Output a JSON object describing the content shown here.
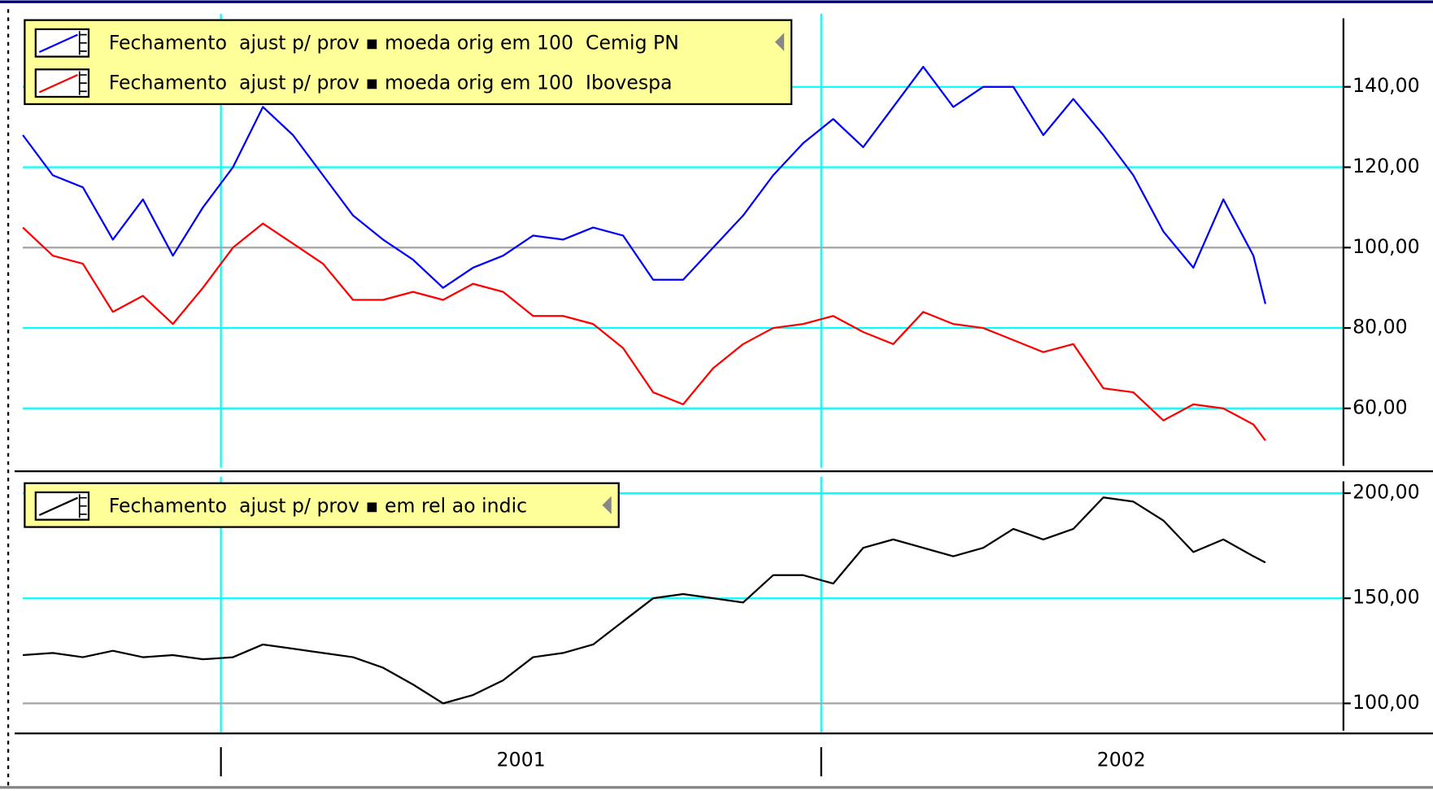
{
  "chart_data": [
    {
      "type": "line",
      "x": [
        2000.67,
        2000.72,
        2000.77,
        2000.82,
        2000.87,
        2000.92,
        2000.97,
        2001.02,
        2001.07,
        2001.12,
        2001.17,
        2001.22,
        2001.27,
        2001.32,
        2001.37,
        2001.42,
        2001.47,
        2001.52,
        2001.57,
        2001.62,
        2001.67,
        2001.72,
        2001.77,
        2001.82,
        2001.87,
        2001.92,
        2001.97,
        2002.02,
        2002.07,
        2002.12,
        2002.17,
        2002.22,
        2002.27,
        2002.32,
        2002.37,
        2002.42,
        2002.47,
        2002.52,
        2002.57,
        2002.62,
        2002.67,
        2002.72,
        2002.74
      ],
      "series": [
        {
          "name": "Fechamento  ajust p/ prov ▪ moeda orig em 100  Cemig PN",
          "color": "#0000ff",
          "values": [
            128,
            118,
            115,
            102,
            112,
            98,
            110,
            120,
            135,
            128,
            118,
            108,
            102,
            97,
            90,
            95,
            98,
            103,
            102,
            105,
            103,
            92,
            92,
            100,
            108,
            118,
            126,
            132,
            125,
            135,
            145,
            135,
            140,
            140,
            128,
            137,
            128,
            118,
            104,
            95,
            112,
            98,
            86
          ]
        },
        {
          "name": "Fechamento  ajust p/ prov ▪ moeda orig em 100  Ibovespa",
          "color": "#ff0000",
          "values": [
            105,
            98,
            96,
            84,
            88,
            81,
            90,
            100,
            106,
            101,
            96,
            87,
            87,
            89,
            87,
            91,
            89,
            83,
            83,
            81,
            75,
            64,
            61,
            70,
            76,
            80,
            81,
            83,
            79,
            76,
            84,
            81,
            80,
            77,
            74,
            76,
            65,
            64,
            57,
            61,
            60,
            56,
            52
          ]
        }
      ],
      "xlim": [
        2000.67,
        2002.87
      ],
      "xticks": [
        2001,
        2002
      ],
      "ylim": [
        45.7,
        158.2
      ],
      "yticks": [
        {
          "value": 60,
          "label": "60,00"
        },
        {
          "value": 80,
          "label": "80,00"
        },
        {
          "value": 100,
          "label": "100,00"
        },
        {
          "value": 120,
          "label": "120,00"
        },
        {
          "value": 140,
          "label": "140,00"
        }
      ],
      "grid": true,
      "grid_color": "#00ffff",
      "baseline": {
        "value": 100,
        "color": "#a8a8a8"
      },
      "legend": "upper left",
      "legend_color": "#ffff99"
    },
    {
      "type": "line",
      "x": [
        2000.67,
        2000.72,
        2000.77,
        2000.82,
        2000.87,
        2000.92,
        2000.97,
        2001.02,
        2001.07,
        2001.12,
        2001.17,
        2001.22,
        2001.27,
        2001.32,
        2001.37,
        2001.42,
        2001.47,
        2001.52,
        2001.57,
        2001.62,
        2001.67,
        2001.72,
        2001.77,
        2001.82,
        2001.87,
        2001.92,
        2001.97,
        2002.02,
        2002.07,
        2002.12,
        2002.17,
        2002.22,
        2002.27,
        2002.32,
        2002.37,
        2002.42,
        2002.47,
        2002.52,
        2002.57,
        2002.62,
        2002.67,
        2002.72,
        2002.74
      ],
      "series": [
        {
          "name": "Fechamento  ajust p/ prov ▪ em rel ao indic",
          "color": "#000000",
          "values": [
            123,
            124,
            122,
            125,
            122,
            123,
            121,
            122,
            128,
            126,
            124,
            122,
            117,
            109,
            100,
            104,
            111,
            122,
            124,
            128,
            139,
            150,
            152,
            150,
            148,
            161,
            161,
            157,
            174,
            178,
            174,
            170,
            174,
            183,
            178,
            183,
            198,
            196,
            187,
            172,
            178,
            170,
            167
          ]
        }
      ],
      "xlim": [
        2000.67,
        2002.87
      ],
      "xticks": [
        2001,
        2002
      ],
      "ylim": [
        87,
        207.8
      ],
      "yticks": [
        {
          "value": 100,
          "label": "100,00"
        },
        {
          "value": 150,
          "label": "150,00"
        },
        {
          "value": 200,
          "label": "200,00"
        }
      ],
      "grid": true,
      "grid_color": "#00ffff",
      "baseline": {
        "value": 100,
        "color": "#a8a8a8"
      },
      "legend": "upper left",
      "legend_color": "#ffff99"
    }
  ]
}
